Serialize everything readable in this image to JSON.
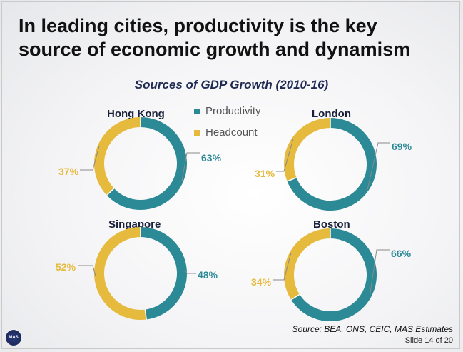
{
  "title_line1": "In leading cities, productivity is the key",
  "title_line2": "source of economic growth and dynamism",
  "chart_data": {
    "type": "pie",
    "subtitle": "Sources of GDP Growth (2010-16)",
    "legend": [
      {
        "name": "Productivity",
        "color": "#2b8a96"
      },
      {
        "name": "Headcount",
        "color": "#e6ba3c"
      }
    ],
    "charts": [
      {
        "city": "Hong Kong",
        "productivity": 63,
        "headcount": 37,
        "productivity_label": "63%",
        "headcount_label": "37%"
      },
      {
        "city": "London",
        "productivity": 69,
        "headcount": 31,
        "productivity_label": "69%",
        "headcount_label": "31%"
      },
      {
        "city": "Singapore",
        "productivity": 48,
        "headcount": 52,
        "productivity_label": "48%",
        "headcount_label": "52%"
      },
      {
        "city": "Boston",
        "productivity": 66,
        "headcount": 34,
        "productivity_label": "66%",
        "headcount_label": "34%"
      }
    ]
  },
  "source": "Source: BEA, ONS, CEIC, MAS Estimates",
  "slide_number": "Slide 14 of 20",
  "logo_text": "MAS"
}
